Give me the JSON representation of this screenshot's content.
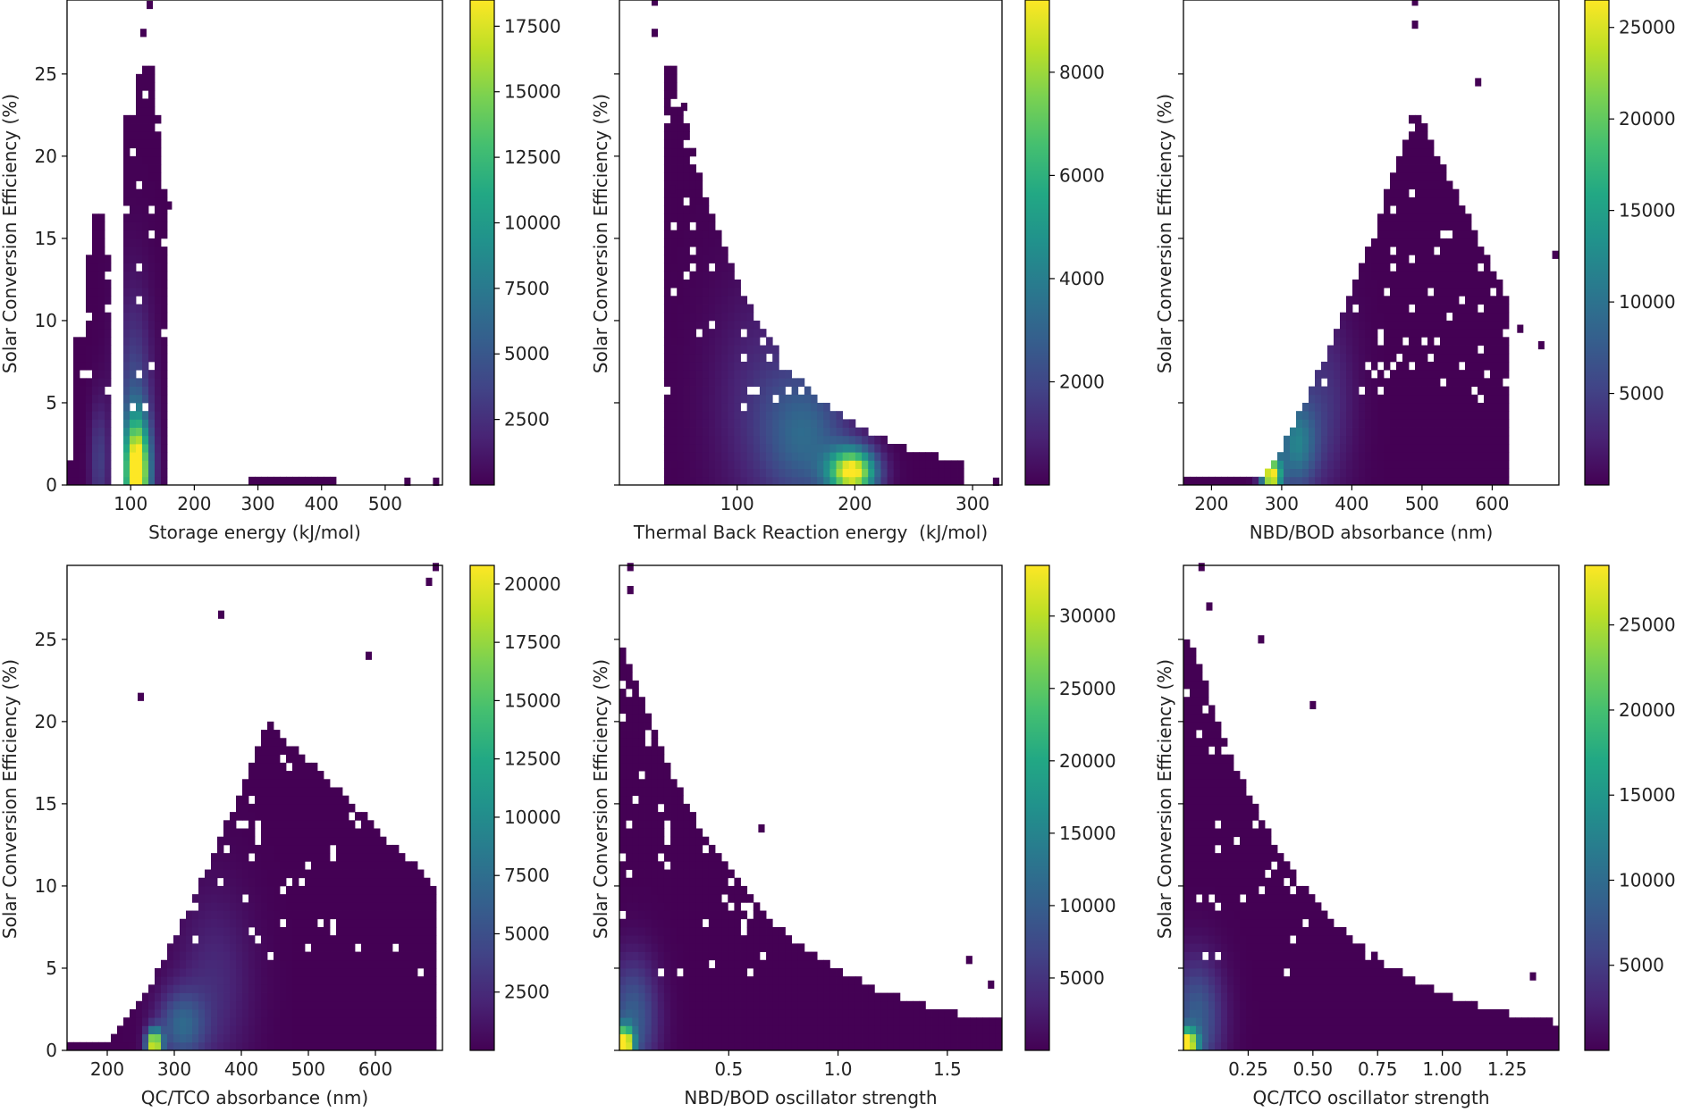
{
  "figure": {
    "colormap": "viridis",
    "frame_color": "#000000",
    "background": "#ffffff"
  },
  "chart_data": [
    {
      "type": "heatmap",
      "title": "",
      "xlabel": "Storage energy (kJ/mol)",
      "ylabel": "Solar Conversion Efficiency (%)",
      "xlim": [
        0,
        590
      ],
      "ylim": [
        0,
        29.5
      ],
      "xticks": [
        100,
        200,
        300,
        400,
        500
      ],
      "yticks": [
        0,
        5,
        10,
        15,
        20,
        25
      ],
      "show_ytick_labels": true,
      "colorbar": {
        "min": 0,
        "max": 18500,
        "ticks": [
          2500,
          5000,
          7500,
          10000,
          12500,
          15000,
          17500
        ]
      },
      "density_peaks": [
        {
          "x": 110,
          "y": 0.8,
          "sx": 14,
          "sy": 2.2,
          "w": 1.0
        },
        {
          "x": 105,
          "y": 4,
          "sx": 20,
          "sy": 5,
          "w": 0.25
        },
        {
          "x": 50,
          "y": 1.5,
          "sx": 10,
          "sy": 2.5,
          "w": 0.18
        }
      ],
      "occupied_regions": [
        {
          "x0": 0,
          "x1": 20,
          "y0": 0,
          "y1": 1.5
        },
        {
          "x0": 10,
          "x1": 30,
          "y0": 0,
          "y1": 9
        },
        {
          "x0": 25,
          "x1": 70,
          "y0": 0,
          "y1": 14
        },
        {
          "x0": 40,
          "x1": 60,
          "y0": 0,
          "y1": 16.5
        },
        {
          "x0": 85,
          "x1": 145,
          "y0": 0,
          "y1": 22.5
        },
        {
          "x0": 105,
          "x1": 135,
          "y0": 0,
          "y1": 25.5
        },
        {
          "x0": 140,
          "x1": 160,
          "y0": 0,
          "y1": 18
        },
        {
          "x0": 290,
          "x1": 420,
          "y0": 0,
          "y1": 0.4
        }
      ],
      "outliers": [
        [
          130,
          29.2
        ],
        [
          120,
          27.5
        ],
        [
          535,
          0.2
        ],
        [
          580,
          0.2
        ],
        [
          160,
          17
        ]
      ]
    },
    {
      "type": "heatmap",
      "title": "",
      "xlabel": "Thermal Back Reaction energy  (kJ/mol)",
      "ylabel": "Solar Conversion Efficiency (%)",
      "xlim": [
        0,
        325
      ],
      "ylim": [
        0,
        29.5
      ],
      "xticks": [
        100,
        200,
        300
      ],
      "yticks": [
        0,
        5,
        10,
        15,
        20,
        25
      ],
      "show_ytick_labels": false,
      "colorbar": {
        "min": 0,
        "max": 9400,
        "ticks": [
          2000,
          4000,
          6000,
          8000
        ]
      },
      "density_peaks": [
        {
          "x": 198,
          "y": 0.8,
          "sx": 14,
          "sy": 1.0,
          "w": 1.0
        },
        {
          "x": 160,
          "y": 3,
          "sx": 25,
          "sy": 3,
          "w": 0.3
        },
        {
          "x": 120,
          "y": 5,
          "sx": 30,
          "sy": 5,
          "w": 0.12
        }
      ],
      "envelope": {
        "x_start": 40,
        "x_end": 290,
        "decay_from": 45,
        "y_top": 25,
        "k": 0.0135
      },
      "outliers": [
        [
          30,
          29.4
        ],
        [
          30,
          27.5
        ],
        [
          55,
          23
        ],
        [
          320,
          0.2
        ],
        [
          45,
          18
        ]
      ]
    },
    {
      "type": "heatmap",
      "title": "",
      "xlabel": "NBD/BOD absorbance (nm)",
      "ylabel": "Solar Conversion Efficiency (%)",
      "xlim": [
        160,
        695
      ],
      "ylim": [
        0,
        29.5
      ],
      "xticks": [
        200,
        300,
        400,
        500,
        600
      ],
      "yticks": [
        0,
        5,
        10,
        15,
        20,
        25
      ],
      "show_ytick_labels": false,
      "colorbar": {
        "min": 0,
        "max": 26500,
        "ticks": [
          5000,
          10000,
          15000,
          20000,
          25000
        ]
      },
      "density_peaks": [
        {
          "x": 285,
          "y": 0.6,
          "sx": 10,
          "sy": 0.8,
          "w": 1.0
        },
        {
          "x": 320,
          "y": 2.5,
          "sx": 20,
          "sy": 2,
          "w": 0.4
        },
        {
          "x": 360,
          "y": 5,
          "sx": 30,
          "sy": 4,
          "w": 0.15
        }
      ],
      "rising_envelope": {
        "x_start": 160,
        "x_flat_end": 270,
        "x_peak": 490,
        "y_peak": 23,
        "x_end": 620
      },
      "outliers": [
        [
          490,
          29.4
        ],
        [
          490,
          28
        ],
        [
          690,
          14
        ],
        [
          670,
          8.5
        ],
        [
          640,
          9.5
        ],
        [
          580,
          24.5
        ]
      ]
    },
    {
      "type": "heatmap",
      "title": "",
      "xlabel": "QC/TCO absorbance (nm)",
      "ylabel": "Solar Conversion Efficiency (%)",
      "xlim": [
        140,
        700
      ],
      "ylim": [
        0,
        29.5
      ],
      "xticks": [
        200,
        300,
        400,
        500,
        600
      ],
      "yticks": [
        0,
        5,
        10,
        15,
        20,
        25
      ],
      "show_ytick_labels": true,
      "colorbar": {
        "min": 0,
        "max": 20800,
        "ticks": [
          2500,
          5000,
          7500,
          10000,
          12500,
          15000,
          17500,
          20000
        ]
      },
      "density_peaks": [
        {
          "x": 270,
          "y": 0.4,
          "sx": 8,
          "sy": 0.6,
          "w": 1.0
        },
        {
          "x": 310,
          "y": 1.5,
          "sx": 25,
          "sy": 1.5,
          "w": 0.3
        },
        {
          "x": 360,
          "y": 4,
          "sx": 40,
          "sy": 4,
          "w": 0.12
        }
      ],
      "rising_envelope": {
        "x_start": 140,
        "x_flat_end": 200,
        "x_peak": 440,
        "y_peak": 20,
        "x_end": 690
      },
      "outliers": [
        [
          690,
          29.4
        ],
        [
          680,
          28.5
        ],
        [
          370,
          26.5
        ],
        [
          250,
          21.5
        ],
        [
          590,
          24
        ]
      ]
    },
    {
      "type": "heatmap",
      "title": "",
      "xlabel": "NBD/BOD oscillator strength",
      "ylabel": "Solar Conversion Efficiency (%)",
      "xlim": [
        0,
        1.75
      ],
      "ylim": [
        0,
        29.5
      ],
      "xticks": [
        0.5,
        1.0,
        1.5
      ],
      "xtick_labels": [
        "0.5",
        "1.0",
        "1.5"
      ],
      "yticks": [
        0,
        5,
        10,
        15,
        20,
        25
      ],
      "show_ytick_labels": false,
      "colorbar": {
        "min": 0,
        "max": 33500,
        "ticks": [
          5000,
          10000,
          15000,
          20000,
          25000,
          30000
        ]
      },
      "density_peaks": [
        {
          "x": 0.02,
          "y": 0.4,
          "sx": 0.03,
          "sy": 0.7,
          "w": 1.0
        },
        {
          "x": 0.06,
          "y": 2,
          "sx": 0.08,
          "sy": 2.5,
          "w": 0.3
        }
      ],
      "envelope": {
        "x_start": 0,
        "x_end": 1.74,
        "decay_from": 0.02,
        "y_top": 24,
        "k": 1.75
      },
      "outliers": [
        [
          0.05,
          29.4
        ],
        [
          0.05,
          28
        ],
        [
          1.6,
          5.5
        ],
        [
          1.7,
          4
        ],
        [
          0.65,
          13.5
        ]
      ]
    },
    {
      "type": "heatmap",
      "title": "",
      "xlabel": "QC/TCO oscillator strength",
      "ylabel": "Solar Conversion Efficiency (%)",
      "xlim": [
        0,
        1.45
      ],
      "ylim": [
        0,
        29.5
      ],
      "xticks": [
        0.25,
        0.5,
        0.75,
        1.0,
        1.25
      ],
      "xtick_labels": [
        "0.25",
        "0.50",
        "0.75",
        "1.00",
        "1.25"
      ],
      "yticks": [
        0,
        5,
        10,
        15,
        20,
        25
      ],
      "show_ytick_labels": false,
      "colorbar": {
        "min": 0,
        "max": 28500,
        "ticks": [
          5000,
          10000,
          15000,
          20000,
          25000
        ]
      },
      "density_peaks": [
        {
          "x": 0.01,
          "y": 0.4,
          "sx": 0.03,
          "sy": 0.6,
          "w": 1.0
        },
        {
          "x": 0.05,
          "y": 2,
          "sx": 0.07,
          "sy": 2.5,
          "w": 0.3
        }
      ],
      "envelope": {
        "x_start": 0,
        "x_end": 1.44,
        "decay_from": 0.02,
        "y_top": 25,
        "k": 2.2
      },
      "outliers": [
        [
          0.07,
          29.4
        ],
        [
          0.1,
          27
        ],
        [
          1.35,
          4.5
        ],
        [
          0.3,
          25
        ],
        [
          0.5,
          21
        ]
      ]
    }
  ]
}
